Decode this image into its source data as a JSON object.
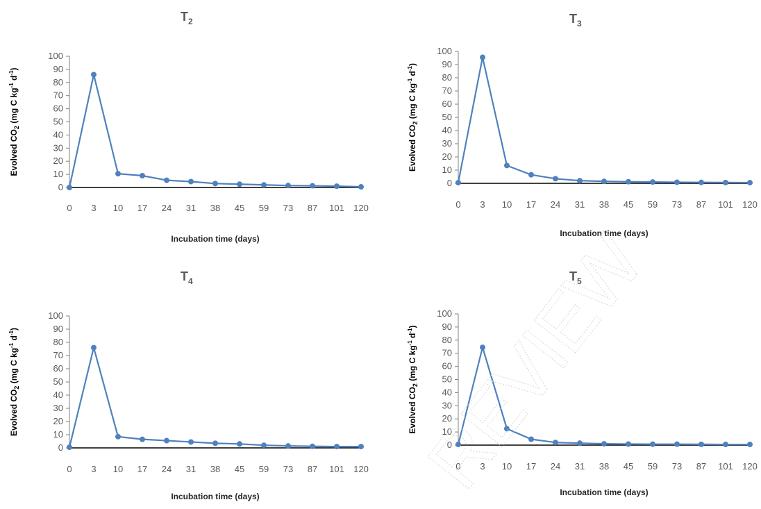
{
  "watermark": "REVIEW",
  "chart_data": [
    {
      "type": "line",
      "title": "T",
      "title_sub": "2",
      "xlabel": "Incubation time (days)",
      "ylabel_parts": [
        "Evolved CO",
        "2",
        " (mg C kg",
        "-1",
        " d",
        "-1",
        ")"
      ],
      "categories": [
        "0",
        "3",
        "10",
        "17",
        "24",
        "31",
        "38",
        "45",
        "59",
        "73",
        "87",
        "101",
        "120"
      ],
      "ylim": [
        0,
        100
      ],
      "yticks": [
        0,
        10,
        20,
        30,
        40,
        50,
        60,
        70,
        80,
        90,
        100
      ],
      "series": [
        {
          "values": [
            0,
            86,
            10.5,
            9,
            5.5,
            4.5,
            3,
            2.5,
            2,
            1.5,
            1.3,
            1,
            0.5
          ]
        }
      ],
      "color": "#4F81BD"
    },
    {
      "type": "line",
      "title": "T",
      "title_sub": "3",
      "xlabel": "Incubation time (days)",
      "ylabel_parts": [
        "Evolved CO",
        "2",
        " (mg C kg",
        "-1",
        " d",
        "-1",
        ")"
      ],
      "categories": [
        "0",
        "3",
        "10",
        "17",
        "24",
        "31",
        "38",
        "45",
        "59",
        "73",
        "87",
        "101",
        "120"
      ],
      "ylim": [
        0,
        100
      ],
      "yticks": [
        0,
        10,
        20,
        30,
        40,
        50,
        60,
        70,
        80,
        90,
        100
      ],
      "series": [
        {
          "values": [
            0.5,
            95.5,
            13.5,
            6.5,
            3.5,
            2,
            1.5,
            1.2,
            1,
            0.8,
            0.7,
            0.6,
            0.5
          ]
        }
      ],
      "color": "#4F81BD"
    },
    {
      "type": "line",
      "title": "T",
      "title_sub": "4",
      "xlabel": "Incubation time (days)",
      "ylabel_parts": [
        "Evolved CO",
        "2",
        " (mg C kg",
        "-1",
        " d",
        "-1",
        ")"
      ],
      "categories": [
        "0",
        "3",
        "10",
        "17",
        "24",
        "31",
        "38",
        "45",
        "59",
        "73",
        "87",
        "101",
        "120"
      ],
      "ylim": [
        0,
        100
      ],
      "yticks": [
        0,
        10,
        20,
        30,
        40,
        50,
        60,
        70,
        80,
        90,
        100
      ],
      "series": [
        {
          "values": [
            0.5,
            76,
            8.5,
            6.5,
            5.5,
            4.5,
            3.5,
            3,
            2,
            1.5,
            1.2,
            1,
            1
          ]
        }
      ],
      "color": "#4F81BD"
    },
    {
      "type": "line",
      "title": "T",
      "title_sub": "5",
      "xlabel": "Incubation time (days)",
      "ylabel_parts": [
        "Evolved CO",
        "2",
        " (mg C kg",
        "-1",
        " d",
        "-1",
        ")"
      ],
      "categories": [
        "0",
        "3",
        "10",
        "17",
        "24",
        "31",
        "38",
        "45",
        "59",
        "73",
        "87",
        "101",
        "120"
      ],
      "ylim": [
        0,
        100
      ],
      "yticks": [
        0,
        10,
        20,
        30,
        40,
        50,
        60,
        70,
        80,
        90,
        100
      ],
      "series": [
        {
          "values": [
            0.5,
            74.5,
            12.5,
            4.5,
            2,
            1.5,
            1,
            0.8,
            0.7,
            0.7,
            0.6,
            0.5,
            0.5
          ]
        }
      ],
      "color": "#4F81BD"
    }
  ]
}
